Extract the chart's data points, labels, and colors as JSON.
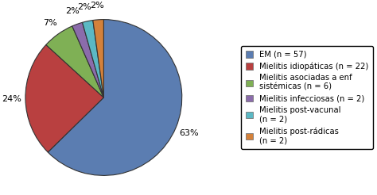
{
  "labels": [
    "EM (n = 57)",
    "Mielitis idiopáticas (n = 22)",
    "Mielitis asociadas a enf\nsistémicas (n = 6)",
    "Mielitis infecciosas (n = 2)",
    "Mielitis post-vacunal\n(n = 2)",
    "Mielitis post-rádicas\n(n = 2)"
  ],
  "values": [
    57,
    22,
    6,
    2,
    2,
    2
  ],
  "colors": [
    "#5B7DB1",
    "#B94040",
    "#7FB055",
    "#8B6CAB",
    "#5BB8C4",
    "#D4813A"
  ],
  "pct_labels": [
    "63%",
    "24%",
    "7%",
    "2%",
    "2%",
    "2%"
  ],
  "startangle": 90,
  "legend_fontsize": 7.2,
  "pct_fontsize": 8,
  "background_color": "#ffffff",
  "pie_edge_color": "#333333",
  "pie_linewidth": 0.8
}
